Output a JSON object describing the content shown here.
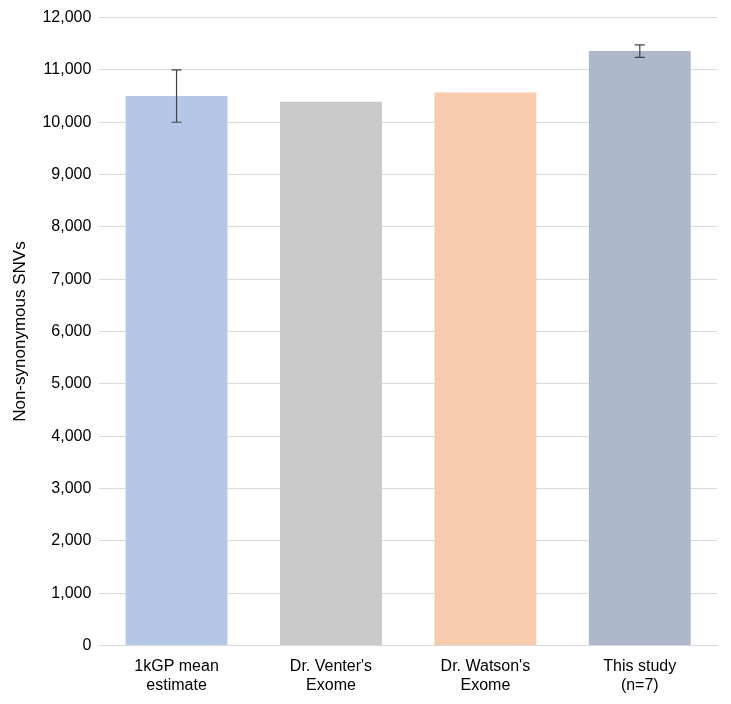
{
  "chart_data": {
    "type": "bar",
    "y_label": "Non-synonymous SNVs",
    "categories": [
      [
        "1kGP mean",
        "estimate"
      ],
      [
        "Dr. Venter's",
        "Exome"
      ],
      [
        "Dr. Watson's",
        "Exome"
      ],
      [
        "This study",
        "(n=7)"
      ]
    ],
    "values": [
      10500,
      10390,
      10570,
      11360
    ],
    "errors": [
      500,
      null,
      null,
      120
    ],
    "colors": [
      "#b4c7e7",
      "#c9c9c9",
      "#f8cbad",
      "#adb9ca"
    ],
    "ylim": [
      0,
      12000
    ],
    "yticks": [
      0,
      {
        "value": 1000,
        "label": "1,000"
      },
      {
        "value": 2000,
        "label": "2,000"
      },
      {
        "value": 3000,
        "label": "3,000"
      },
      {
        "value": 4000,
        "label": "4,000"
      },
      {
        "value": 5000,
        "label": "5,000"
      },
      {
        "value": 6000,
        "label": "6,000"
      },
      {
        "value": 7000,
        "label": "7,000"
      },
      {
        "value": 8000,
        "label": "8,000"
      },
      {
        "value": 9000,
        "label": "9,000"
      },
      {
        "value": 10000,
        "label": "10,000"
      },
      {
        "value": 11000,
        "label": "11,000"
      },
      {
        "value": 12000,
        "label": "12,000"
      }
    ],
    "grid": true
  }
}
